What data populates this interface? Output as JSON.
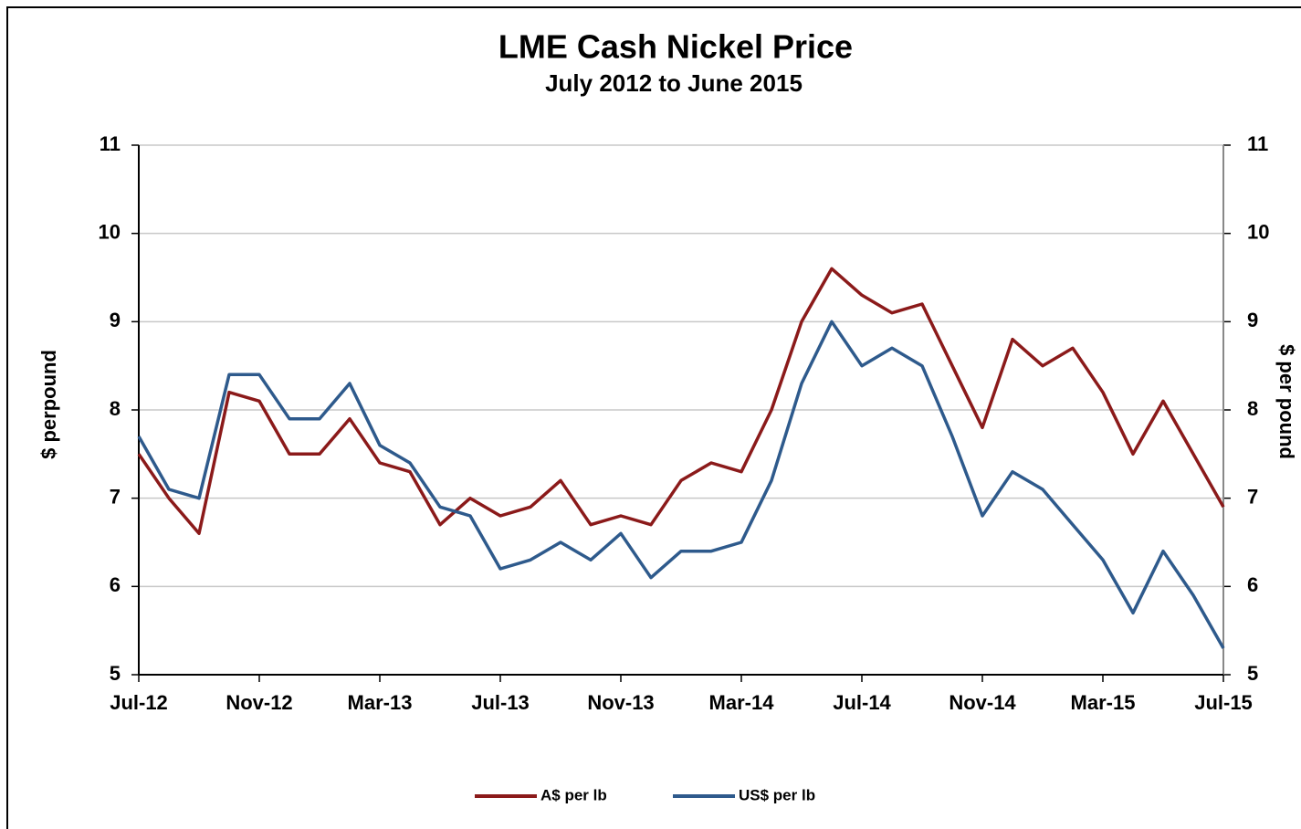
{
  "chart_data": {
    "type": "line",
    "title": "LME Cash Nickel Price",
    "subtitle": "July 2012 to June 2015",
    "ylabel": "$ perpound",
    "y2label": "$ per pound",
    "categories": [
      "Jul-12",
      null,
      null,
      null,
      "Nov-12",
      null,
      null,
      null,
      "Mar-13",
      null,
      null,
      null,
      "Jul-13",
      null,
      null,
      null,
      "Nov-13",
      null,
      null,
      null,
      "Mar-14",
      null,
      null,
      null,
      "Jul-14",
      null,
      null,
      null,
      "Nov-14",
      null,
      null,
      null,
      "Mar-15",
      null,
      null,
      null,
      "Jul-15"
    ],
    "series": [
      {
        "name": "A$ per lb",
        "color": "#8b1a1a",
        "values": [
          7.5,
          7.0,
          6.6,
          8.2,
          8.1,
          7.5,
          7.5,
          7.9,
          7.4,
          7.3,
          6.7,
          7.0,
          6.8,
          6.9,
          7.2,
          6.7,
          6.8,
          6.7,
          7.2,
          7.4,
          7.3,
          8.0,
          9.0,
          9.6,
          9.3,
          9.1,
          9.2,
          8.5,
          7.8,
          8.8,
          8.5,
          8.7,
          8.2,
          7.5,
          8.1,
          7.5,
          6.9
        ]
      },
      {
        "name": "US$ per lb",
        "color": "#2e5a8c",
        "values": [
          7.7,
          7.1,
          7.0,
          8.4,
          8.4,
          7.9,
          7.9,
          8.3,
          7.6,
          7.4,
          6.9,
          6.8,
          6.2,
          6.3,
          6.5,
          6.3,
          6.6,
          6.1,
          6.4,
          6.4,
          6.5,
          7.2,
          8.3,
          9.0,
          8.5,
          8.7,
          8.5,
          7.7,
          6.8,
          7.3,
          7.1,
          6.7,
          6.3,
          5.7,
          6.4,
          5.9,
          5.3
        ]
      }
    ],
    "ylim": [
      5,
      11
    ],
    "yticks": [
      5,
      6,
      7,
      8,
      9,
      10,
      11
    ],
    "y2lim": [
      5,
      11
    ],
    "y2ticks": [
      5,
      6,
      7,
      8,
      9,
      10,
      11
    ],
    "grid": true,
    "legend": "bottom"
  }
}
